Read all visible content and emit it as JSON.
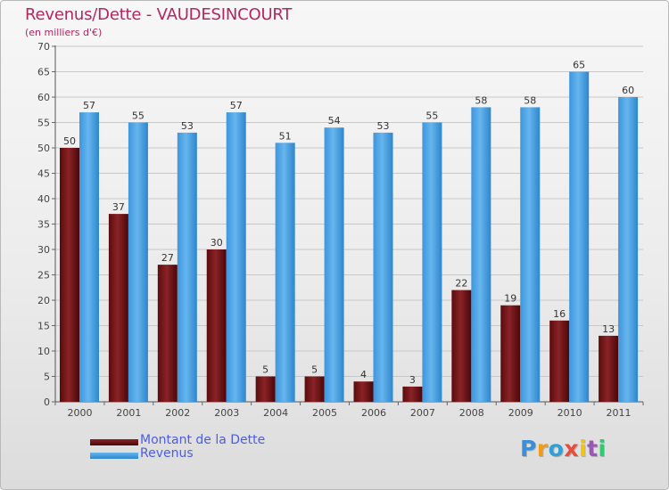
{
  "title": "Revenus/Dette - VAUDESINCOURT",
  "subtitle": "(en milliers d'€)",
  "chart_data": {
    "type": "bar",
    "categories": [
      "2000",
      "2001",
      "2002",
      "2003",
      "2004",
      "2005",
      "2006",
      "2007",
      "2008",
      "2009",
      "2010",
      "2011"
    ],
    "series": [
      {
        "name": "Montant de la Dette",
        "values": [
          50,
          37,
          27,
          30,
          5,
          5,
          4,
          3,
          22,
          19,
          16,
          13
        ],
        "color": "#6b1416"
      },
      {
        "name": "Revenus",
        "values": [
          57,
          55,
          53,
          57,
          51,
          54,
          53,
          55,
          58,
          58,
          65,
          60
        ],
        "color": "#48a3e6"
      }
    ],
    "ylim": [
      0,
      70
    ],
    "yticks": [
      0,
      5,
      10,
      15,
      20,
      25,
      30,
      35,
      40,
      45,
      50,
      55,
      60,
      65,
      70
    ],
    "grid": true,
    "data_labels": true,
    "legend_position": "bottom-left"
  },
  "logo": {
    "letters": [
      "P",
      "r",
      "o",
      "x",
      "i",
      "t",
      "i"
    ],
    "colors": [
      "#3b8fd8",
      "#f39c12",
      "#2e9fd8",
      "#e74c3c",
      "#f1c40f",
      "#9b59b6",
      "#2ecc71"
    ]
  }
}
